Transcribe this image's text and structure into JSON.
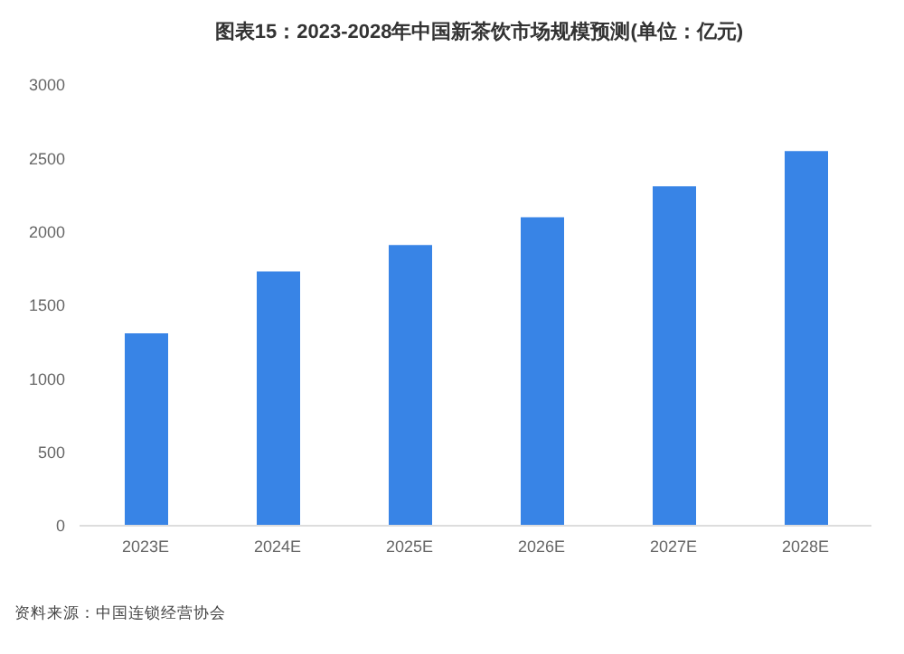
{
  "chart_data": {
    "type": "bar",
    "title": "图表15：2023-2028年中国新茶饮市场规模预测(单位：亿元)",
    "categories": [
      "2023E",
      "2024E",
      "2025E",
      "2026E",
      "2027E",
      "2028E"
    ],
    "values": [
      1310,
      1730,
      1910,
      2100,
      2310,
      2550
    ],
    "color": "#3884e6",
    "ylim": [
      0,
      3000
    ],
    "yticks": [
      0,
      500,
      1000,
      1500,
      2000,
      2500,
      3000
    ],
    "annotations": [
      "资料来源：中国连锁经营协会"
    ]
  }
}
